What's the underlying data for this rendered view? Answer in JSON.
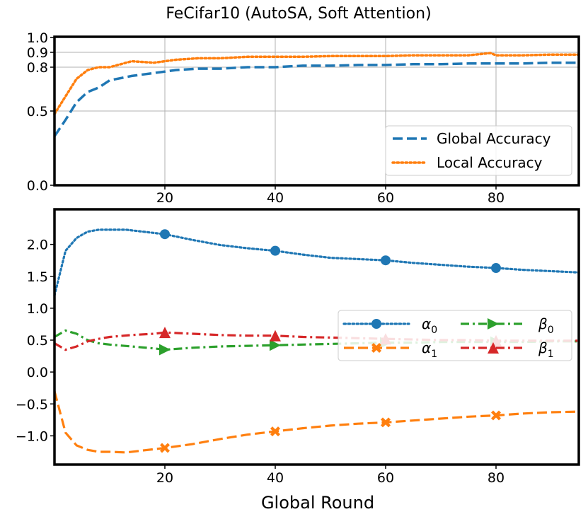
{
  "colors": {
    "blue": "#1f77b4",
    "orange": "#ff7f0e",
    "green": "#2ca02c",
    "red": "#d62728"
  },
  "chart_data": [
    {
      "type": "line",
      "title": "FeCifar10 (AutoSA, Soft Attention)",
      "xlabel": "",
      "ylabel": "",
      "xlim": [
        0,
        95
      ],
      "ylim": [
        0.0,
        1.0
      ],
      "yscale": "log-like (0.0, 0.5, 0.8, 0.9, 1.0 ticks)",
      "x_ticks": [
        "20",
        "40",
        "60",
        "80"
      ],
      "y_ticks": [
        "0.0",
        "0.5",
        "0.8",
        "0.9",
        "1.0"
      ],
      "grid": true,
      "legend_position": "lower-right",
      "series": [
        {
          "name": "Global Accuracy",
          "style": "dashed",
          "color": "blue",
          "x": [
            0,
            2,
            4,
            6,
            8,
            10,
            14,
            18,
            22,
            26,
            30,
            35,
            40,
            45,
            50,
            55,
            60,
            65,
            70,
            75,
            80,
            85,
            90,
            95
          ],
          "values": [
            0.33,
            0.44,
            0.56,
            0.63,
            0.66,
            0.71,
            0.74,
            0.76,
            0.78,
            0.79,
            0.79,
            0.8,
            0.8,
            0.81,
            0.81,
            0.815,
            0.815,
            0.82,
            0.82,
            0.825,
            0.825,
            0.825,
            0.83,
            0.83
          ]
        },
        {
          "name": "Local Accuracy",
          "style": "dotted",
          "color": "orange",
          "x": [
            0,
            2,
            4,
            6,
            8,
            10,
            14,
            18,
            22,
            26,
            30,
            35,
            40,
            45,
            50,
            55,
            60,
            65,
            70,
            75,
            79,
            80,
            85,
            90,
            95
          ],
          "values": [
            0.48,
            0.6,
            0.72,
            0.78,
            0.8,
            0.8,
            0.84,
            0.83,
            0.85,
            0.86,
            0.86,
            0.87,
            0.87,
            0.87,
            0.875,
            0.875,
            0.875,
            0.88,
            0.88,
            0.88,
            0.895,
            0.88,
            0.88,
            0.885,
            0.885
          ]
        }
      ]
    },
    {
      "type": "line",
      "title": "",
      "xlabel": "Global Round",
      "ylabel": "",
      "xlim": [
        0,
        95
      ],
      "ylim": [
        -1.45,
        2.55
      ],
      "x_ticks": [
        "20",
        "40",
        "60",
        "80"
      ],
      "y_ticks": [
        "−1.0",
        "−0.5",
        "0.0",
        "0.5",
        "1.0",
        "1.5",
        "2.0"
      ],
      "grid": false,
      "legend_position": "center-right",
      "series": [
        {
          "name": "α0",
          "name_base": "α",
          "name_sub": "0",
          "style": "dotted",
          "marker": "circle",
          "color": "blue",
          "x": [
            0,
            2,
            4,
            6,
            8,
            10,
            13,
            16,
            20,
            25,
            30,
            35,
            40,
            45,
            50,
            55,
            60,
            65,
            70,
            75,
            80,
            85,
            90,
            95
          ],
          "values": [
            1.2,
            1.9,
            2.1,
            2.2,
            2.23,
            2.23,
            2.23,
            2.2,
            2.16,
            2.07,
            1.99,
            1.94,
            1.9,
            1.84,
            1.79,
            1.77,
            1.75,
            1.71,
            1.68,
            1.65,
            1.63,
            1.6,
            1.58,
            1.56
          ],
          "marker_x": [
            20,
            40,
            60,
            80
          ],
          "marker_values": [
            2.16,
            1.9,
            1.75,
            1.63
          ]
        },
        {
          "name": "α1",
          "name_base": "α",
          "name_sub": "1",
          "style": "dashed",
          "marker": "x-filled",
          "color": "orange",
          "x": [
            0,
            2,
            4,
            6,
            8,
            10,
            13,
            16,
            20,
            25,
            30,
            35,
            40,
            45,
            50,
            55,
            60,
            65,
            70,
            75,
            80,
            85,
            90,
            95
          ],
          "values": [
            -0.3,
            -0.95,
            -1.15,
            -1.22,
            -1.25,
            -1.25,
            -1.26,
            -1.23,
            -1.19,
            -1.13,
            -1.05,
            -0.98,
            -0.93,
            -0.88,
            -0.84,
            -0.81,
            -0.79,
            -0.76,
            -0.73,
            -0.7,
            -0.68,
            -0.65,
            -0.63,
            -0.62
          ],
          "marker_x": [
            20,
            40,
            60,
            80
          ],
          "marker_values": [
            -1.19,
            -0.93,
            -0.79,
            -0.68
          ]
        },
        {
          "name": "β0",
          "name_base": "β",
          "name_sub": "0",
          "style": "dashdot",
          "marker": "triangle-right",
          "color": "green",
          "x": [
            0,
            2,
            4,
            6,
            8,
            10,
            14,
            18,
            20,
            25,
            30,
            35,
            40,
            45,
            50,
            55,
            60,
            65,
            70,
            75,
            80,
            85,
            90,
            95
          ],
          "values": [
            0.55,
            0.65,
            0.6,
            0.5,
            0.45,
            0.43,
            0.4,
            0.37,
            0.35,
            0.38,
            0.4,
            0.41,
            0.42,
            0.43,
            0.44,
            0.45,
            0.46,
            0.46,
            0.47,
            0.47,
            0.47,
            0.47,
            0.48,
            0.48
          ],
          "marker_x": [
            20,
            40,
            60,
            80
          ],
          "marker_values": [
            0.35,
            0.42,
            0.46,
            0.47
          ]
        },
        {
          "name": "β1",
          "name_base": "β",
          "name_sub": "1",
          "style": "dashdot",
          "marker": "triangle-up",
          "color": "red",
          "x": [
            0,
            2,
            4,
            6,
            8,
            10,
            14,
            18,
            20,
            25,
            30,
            35,
            40,
            45,
            50,
            55,
            60,
            65,
            70,
            75,
            80,
            85,
            90,
            95
          ],
          "values": [
            0.45,
            0.35,
            0.4,
            0.48,
            0.52,
            0.55,
            0.58,
            0.6,
            0.62,
            0.6,
            0.58,
            0.57,
            0.57,
            0.55,
            0.54,
            0.53,
            0.52,
            0.51,
            0.5,
            0.5,
            0.49,
            0.49,
            0.49,
            0.49
          ],
          "marker_x": [
            20,
            40,
            60,
            80
          ],
          "marker_values": [
            0.62,
            0.57,
            0.52,
            0.49
          ]
        }
      ]
    }
  ]
}
